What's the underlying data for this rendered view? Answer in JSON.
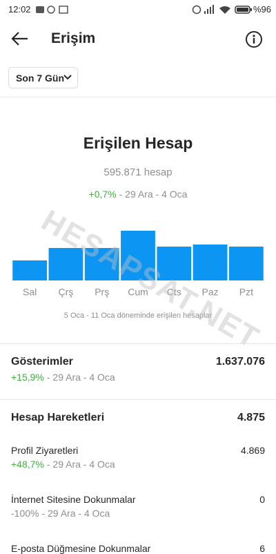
{
  "status_bar": {
    "time": "12:02",
    "battery": "%96"
  },
  "header": {
    "title": "Erişim"
  },
  "filter": {
    "label": "Son 7 Gün"
  },
  "reach": {
    "title": "Erişilen Hesap",
    "count": "595.871 hesap",
    "change": "+0,7%",
    "period": "- 29 Ara - 4 Oca",
    "chart": {
      "type": "bar",
      "categories": [
        "Sal",
        "Çrş",
        "Prş",
        "Cum",
        "Cts",
        "Paz",
        "Pzt"
      ],
      "values": [
        29,
        47,
        47,
        72,
        49,
        52,
        49
      ],
      "color": "#0d95f4"
    },
    "caption": "5 Oca - 11 Oca döneminde erişilen hesaplar"
  },
  "watermark": "HESAPSAT.NET",
  "impressions": {
    "title": "Gösterimler",
    "value": "1.637.076",
    "change": "+15,9%",
    "period": "- 29 Ara - 4 Oca"
  },
  "actions": {
    "title": "Hesap Hareketleri",
    "value": "4.875",
    "items": [
      {
        "label": "Profil Ziyaretleri",
        "value": "4.869",
        "change": "+48,7%",
        "period": "- 29 Ara - 4 Oca"
      },
      {
        "label": "İnternet Sitesine Dokunmalar",
        "value": "0",
        "change": "-100%",
        "period": "- 29 Ara - 4 Oca"
      },
      {
        "label": "E-posta Düğmesine Dokunmalar",
        "value": "6"
      }
    ]
  }
}
